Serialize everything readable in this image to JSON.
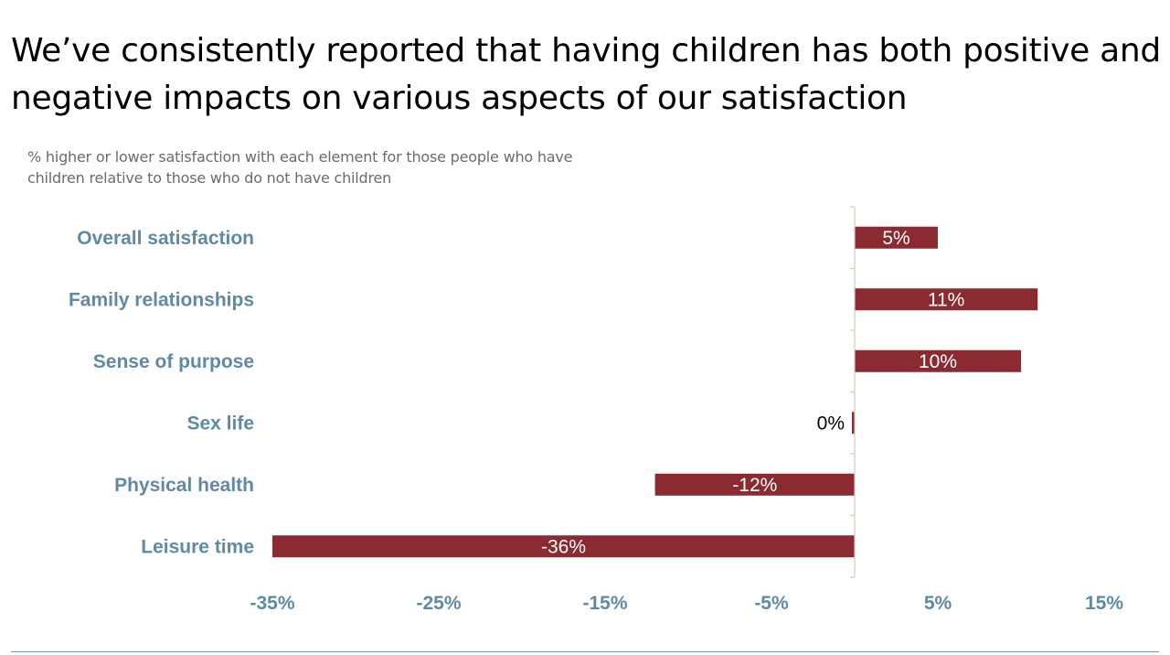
{
  "slide": {
    "title": "We’ve consistently reported that having children has both positive and negative impacts on various aspects of our satisfaction",
    "subtitle": "% higher or lower satisfaction with each element for those people who have children relative to those who do not have children"
  },
  "chart_data": {
    "type": "bar",
    "orientation": "horizontal",
    "categories": [
      "Overall satisfaction",
      "Family relationships",
      "Sense of purpose",
      "Sex life",
      "Physical health",
      "Leisure time"
    ],
    "values": [
      5,
      11,
      10,
      0,
      -12,
      -36
    ],
    "data_labels": [
      "5%",
      "11%",
      "10%",
      "0%",
      "-12%",
      "-36%"
    ],
    "xlim": [
      -35,
      15
    ],
    "xticks": [
      -35,
      -25,
      -15,
      -5,
      5,
      15
    ],
    "xtick_labels": [
      "-35%",
      "-25%",
      "-15%",
      "-5%",
      "5%",
      "15%"
    ],
    "bar_color": "#8b2b31",
    "label_color": "#5f8aa3",
    "grid": false
  }
}
